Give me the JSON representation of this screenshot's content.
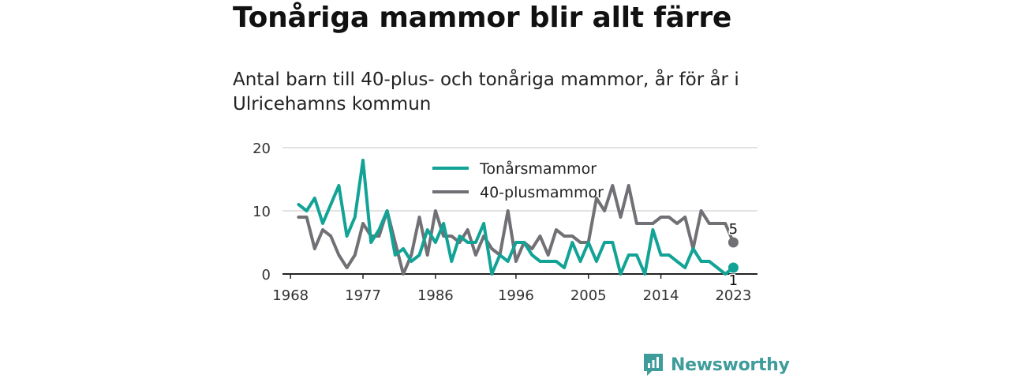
{
  "title": "Tonåriga mammor blir allt färre",
  "subtitle": "Antal barn till 40-plus- och tonåriga mammor, år för år i Ulricehamns kommun",
  "brand": {
    "name": "Newsworthy",
    "color": "#3e9c9a",
    "icon": "newsworthy-logo-icon"
  },
  "chart_data": {
    "type": "line",
    "x": [
      1969,
      1970,
      1971,
      1972,
      1973,
      1974,
      1975,
      1976,
      1977,
      1978,
      1979,
      1980,
      1981,
      1982,
      1983,
      1984,
      1985,
      1986,
      1987,
      1988,
      1989,
      1990,
      1991,
      1992,
      1993,
      1994,
      1995,
      1996,
      1997,
      1998,
      1999,
      2000,
      2001,
      2002,
      2003,
      2004,
      2005,
      2006,
      2007,
      2008,
      2009,
      2010,
      2011,
      2012,
      2013,
      2014,
      2015,
      2016,
      2017,
      2018,
      2019,
      2020,
      2021,
      2022,
      2023
    ],
    "x_ticks": [
      1968,
      1977,
      1986,
      1996,
      2005,
      2014,
      2023
    ],
    "y_ticks": [
      0,
      10,
      20
    ],
    "ylim": [
      0,
      20
    ],
    "grid": true,
    "legend_position": "top-center",
    "series": [
      {
        "name": "Tonårsmammor",
        "color": "#12a396",
        "values": [
          11,
          10,
          12,
          8,
          11,
          14,
          6,
          9,
          18,
          5,
          7,
          10,
          3,
          4,
          2,
          3,
          7,
          5,
          8,
          2,
          6,
          5,
          5,
          8,
          0,
          3,
          2,
          5,
          5,
          3,
          2,
          2,
          2,
          1,
          5,
          2,
          5,
          2,
          5,
          5,
          0,
          3,
          3,
          0,
          7,
          3,
          3,
          2,
          1,
          4,
          2,
          2,
          1,
          0,
          1
        ],
        "end_label": "1"
      },
      {
        "name": "40-plusmammor",
        "color": "#707075",
        "values": [
          9,
          9,
          4,
          7,
          6,
          3,
          1,
          3,
          8,
          6,
          6,
          10,
          5,
          0,
          3,
          9,
          3,
          10,
          6,
          6,
          5,
          7,
          3,
          6,
          4,
          3,
          10,
          2,
          5,
          4,
          6,
          3,
          7,
          6,
          6,
          5,
          5,
          12,
          10,
          14,
          9,
          14,
          8,
          8,
          8,
          9,
          9,
          8,
          9,
          4,
          10,
          8,
          8,
          8,
          5
        ],
        "end_label": "5"
      }
    ]
  }
}
